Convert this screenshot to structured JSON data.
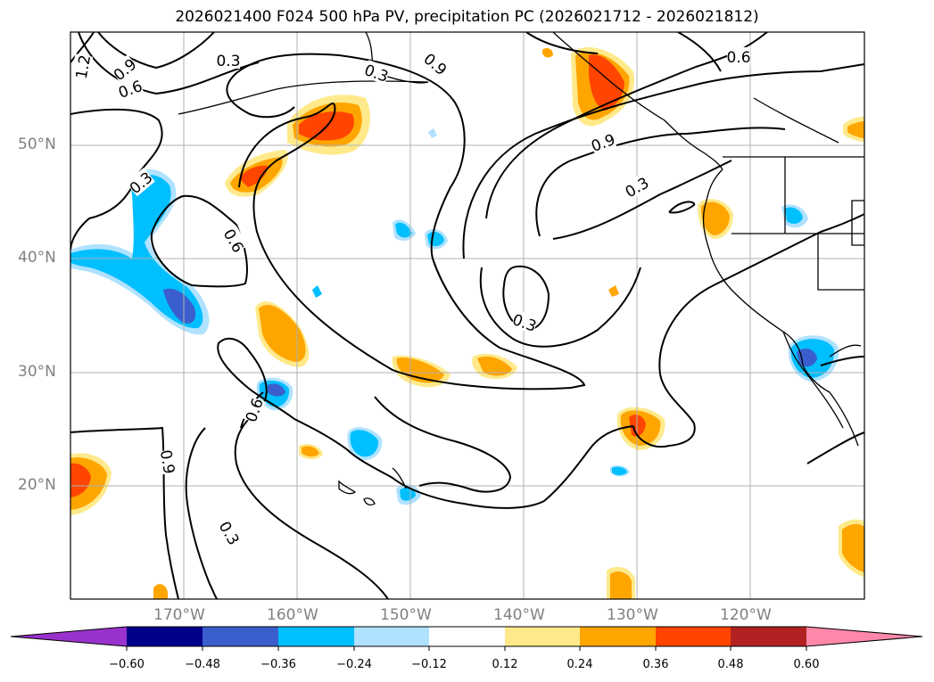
{
  "title": "2026021400 F024 500 hPa PV, precipitation PC (2026021712 - 2026021812)",
  "map": {
    "lat_labels": [
      "50°N",
      "40°N",
      "30°N",
      "20°N"
    ],
    "lon_labels": [
      "170°W",
      "160°W",
      "150°W",
      "140°W",
      "130°W",
      "120°W"
    ],
    "contour_labels": [
      "1.2",
      "0.9",
      "0.6",
      "0.3",
      "0.3",
      "0.9",
      "0.6",
      "0.9",
      "0.3",
      "0.6",
      "0.3",
      "0.3",
      "0.6",
      "0.9",
      "0.3"
    ],
    "colors": {
      "contour": "#000000",
      "gridline": "#b0b0b0",
      "coast": "#000000"
    }
  },
  "colorbar": {
    "ticks": [
      "−0.60",
      "−0.48",
      "−0.36",
      "−0.24",
      "−0.12",
      "0.12",
      "0.24",
      "0.36",
      "0.48",
      "0.60"
    ],
    "colors": [
      "#9932cc",
      "#00008b",
      "#3a5fcd",
      "#00bfff",
      "#b0e2ff",
      "#ffffff",
      "#ffe98b",
      "#ffa500",
      "#ff4500",
      "#b22222",
      "#ff88aa"
    ]
  }
}
